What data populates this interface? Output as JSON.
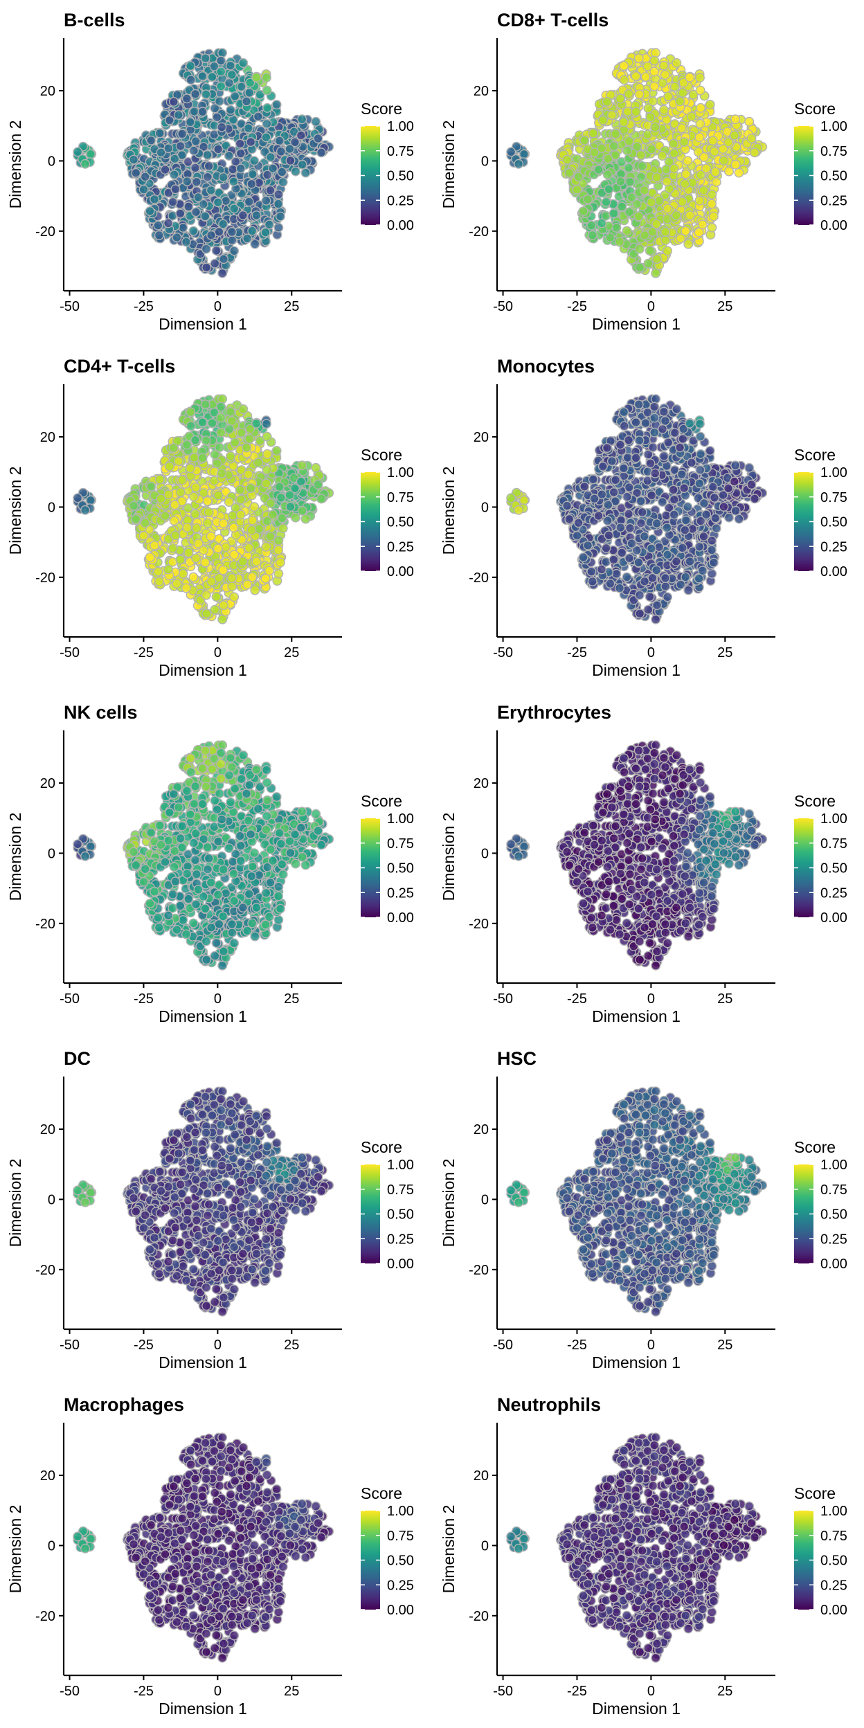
{
  "chart_data": {
    "type": "scatter",
    "layout": "5 rows x 2 columns of t-SNE panels",
    "xlabel": "Dimension 1",
    "ylabel": "Dimension 2",
    "xlim": [
      -52,
      42
    ],
    "ylim": [
      -37,
      35
    ],
    "xticks": [
      -50,
      -25,
      0,
      25
    ],
    "yticks": [
      -20,
      0,
      20
    ],
    "grid": false,
    "legend": {
      "title": "Score",
      "placement": "right of each panel",
      "ticks": [
        1.0,
        0.75,
        0.5,
        0.25,
        0.0
      ],
      "tick_labels": [
        "1.00",
        "0.75",
        "0.50",
        "0.25",
        "0.00"
      ],
      "colormap": "viridis",
      "range": [
        0,
        1
      ]
    },
    "colors": {
      "viridis": [
        "#440154",
        "#482878",
        "#3e4a89",
        "#31688e",
        "#26828e",
        "#1f9e89",
        "#35b779",
        "#6ece58",
        "#b5de2b",
        "#fde725"
      ],
      "point_outline": "#b3b3b3"
    },
    "clusters": {
      "small_cluster_center": [
        -45,
        1.5
      ],
      "small_cluster_radius": 2.5,
      "main_shape_outline": [
        [
          -3,
          31
        ],
        [
          3,
          31
        ],
        [
          8,
          29
        ],
        [
          12,
          25
        ],
        [
          16,
          26
        ],
        [
          18,
          20
        ],
        [
          20,
          17
        ],
        [
          20,
          12
        ],
        [
          23,
          11
        ],
        [
          27,
          12
        ],
        [
          34,
          12
        ],
        [
          37,
          8
        ],
        [
          38,
          3
        ],
        [
          36,
          -1
        ],
        [
          32,
          -3
        ],
        [
          28,
          -4
        ],
        [
          25,
          -3
        ],
        [
          23,
          -5
        ],
        [
          21,
          -9
        ],
        [
          22,
          -14
        ],
        [
          20,
          -22
        ],
        [
          14,
          -24
        ],
        [
          8,
          -24
        ],
        [
          5,
          -28
        ],
        [
          3,
          -33
        ],
        [
          0,
          -35
        ],
        [
          -3,
          -34
        ],
        [
          -5,
          -31
        ],
        [
          -8,
          -26
        ],
        [
          -13,
          -23
        ],
        [
          -19,
          -23
        ],
        [
          -23,
          -19
        ],
        [
          -24,
          -13
        ],
        [
          -27,
          -8
        ],
        [
          -30,
          -3
        ],
        [
          -31,
          2
        ],
        [
          -29,
          6
        ],
        [
          -26,
          8
        ],
        [
          -23,
          7
        ],
        [
          -19,
          9
        ],
        [
          -19,
          14
        ],
        [
          -17,
          17
        ],
        [
          -15,
          20
        ],
        [
          -13,
          24
        ],
        [
          -11,
          27
        ],
        [
          -7,
          30
        ]
      ]
    },
    "panels": [
      {
        "title": "B-cells",
        "main_score": 0.33,
        "small_score": 0.58,
        "noise": 0.13,
        "hotspots": [
          [
            18,
            26,
            6,
            0.55
          ],
          [
            2,
            20,
            8,
            0.1
          ],
          [
            -28,
            5,
            6,
            0.1
          ]
        ]
      },
      {
        "title": "CD8+ T-cells",
        "main_score": 0.96,
        "small_score": 0.36,
        "noise": 0.06,
        "hotspots": [
          [
            -12,
            -8,
            12,
            -0.22
          ],
          [
            -20,
            -20,
            6,
            -0.12
          ],
          [
            -5,
            -30,
            6,
            -0.1
          ]
        ]
      },
      {
        "title": "CD4+ T-cells",
        "main_score": 0.95,
        "small_score": 0.33,
        "noise": 0.08,
        "hotspots": [
          [
            -4,
            24,
            7,
            -0.3
          ],
          [
            26,
            4,
            8,
            -0.3
          ],
          [
            -26,
            2,
            5,
            -0.2
          ],
          [
            16,
            26,
            3,
            -0.7
          ]
        ]
      },
      {
        "title": "Monocytes",
        "main_score": 0.24,
        "small_score": 0.9,
        "noise": 0.07,
        "hotspots": [
          [
            30,
            4,
            6,
            -0.08
          ],
          [
            16,
            26,
            3,
            0.35
          ]
        ]
      },
      {
        "title": "NK cells",
        "main_score": 0.6,
        "small_score": 0.3,
        "noise": 0.14,
        "hotspots": [
          [
            -4,
            26,
            8,
            0.2
          ],
          [
            -26,
            3,
            6,
            0.18
          ],
          [
            5,
            -15,
            12,
            -0.12
          ],
          [
            30,
            5,
            8,
            0.0
          ]
        ]
      },
      {
        "title": "Erythrocytes",
        "main_score": 0.08,
        "small_score": 0.3,
        "noise": 0.06,
        "hotspots": [
          [
            27,
            5,
            9,
            0.3
          ],
          [
            20,
            -5,
            6,
            0.22
          ],
          [
            25,
            12,
            3,
            0.45
          ]
        ]
      },
      {
        "title": "DC",
        "main_score": 0.16,
        "small_score": 0.72,
        "noise": 0.07,
        "hotspots": [
          [
            5,
            15,
            9,
            0.08
          ],
          [
            22,
            9,
            4,
            0.3
          ]
        ]
      },
      {
        "title": "HSC",
        "main_score": 0.25,
        "small_score": 0.6,
        "noise": 0.08,
        "hotspots": [
          [
            27,
            4,
            8,
            0.25
          ],
          [
            26,
            12,
            3,
            0.45
          ],
          [
            5,
            18,
            10,
            0.05
          ]
        ]
      },
      {
        "title": "Macrophages",
        "main_score": 0.1,
        "small_score": 0.62,
        "noise": 0.05,
        "hotspots": [
          [
            26,
            8,
            4,
            0.15
          ],
          [
            18,
            26,
            3,
            0.2
          ]
        ]
      },
      {
        "title": "Neutrophils",
        "main_score": 0.12,
        "small_score": 0.45,
        "noise": 0.06,
        "hotspots": [
          [
            27,
            2,
            8,
            -0.05
          ]
        ]
      }
    ]
  }
}
